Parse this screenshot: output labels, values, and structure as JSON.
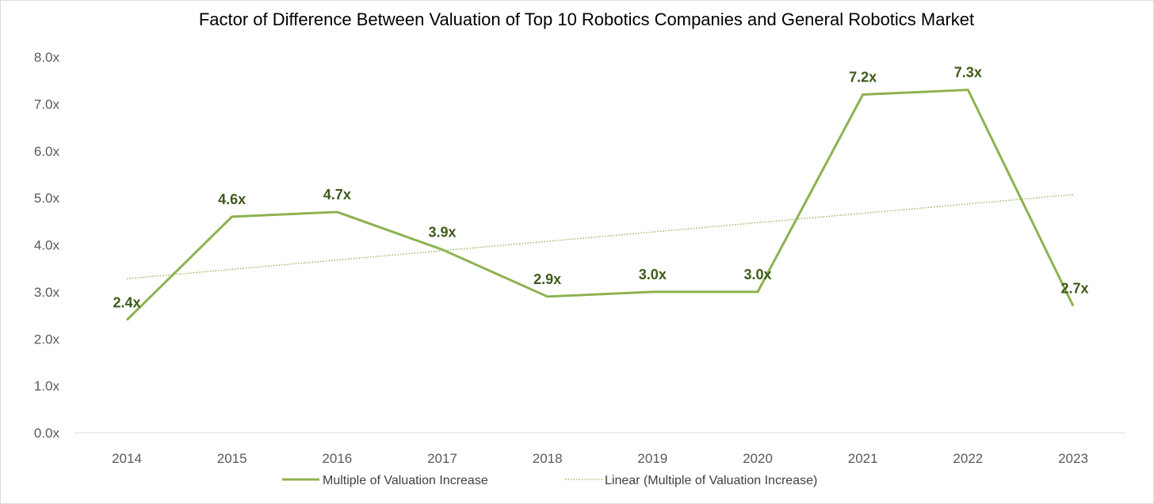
{
  "chart_data": {
    "type": "line",
    "title": "Factor of  Difference Between Valuation of Top 10 Robotics Companies and  General Robotics Market",
    "xlabel": "",
    "ylabel": "",
    "categories": [
      "2014",
      "2015",
      "2016",
      "2017",
      "2018",
      "2019",
      "2020",
      "2021",
      "2022",
      "2023"
    ],
    "series": [
      {
        "name": "Multiple of Valuation Increase",
        "values": [
          2.4,
          4.6,
          4.7,
          3.9,
          2.9,
          3.0,
          3.0,
          7.2,
          7.3,
          2.7
        ],
        "labels": [
          "2.4x",
          "4.6x",
          "4.7x",
          "3.9x",
          "2.9x",
          "3.0x",
          "3.0x",
          "7.2x",
          "7.3x",
          "2.7x"
        ],
        "color": "#8db250"
      },
      {
        "name": "Linear (Multiple of Valuation Increase)",
        "type": "trendline",
        "start": 3.28,
        "end": 5.07,
        "color": "#8db250"
      }
    ],
    "yticks": [
      "0.0x",
      "1.0x",
      "2.0x",
      "3.0x",
      "4.0x",
      "5.0x",
      "6.0x",
      "7.0x",
      "8.0x"
    ],
    "ylim": [
      0,
      8
    ],
    "grid": false,
    "legend": "bottom"
  }
}
